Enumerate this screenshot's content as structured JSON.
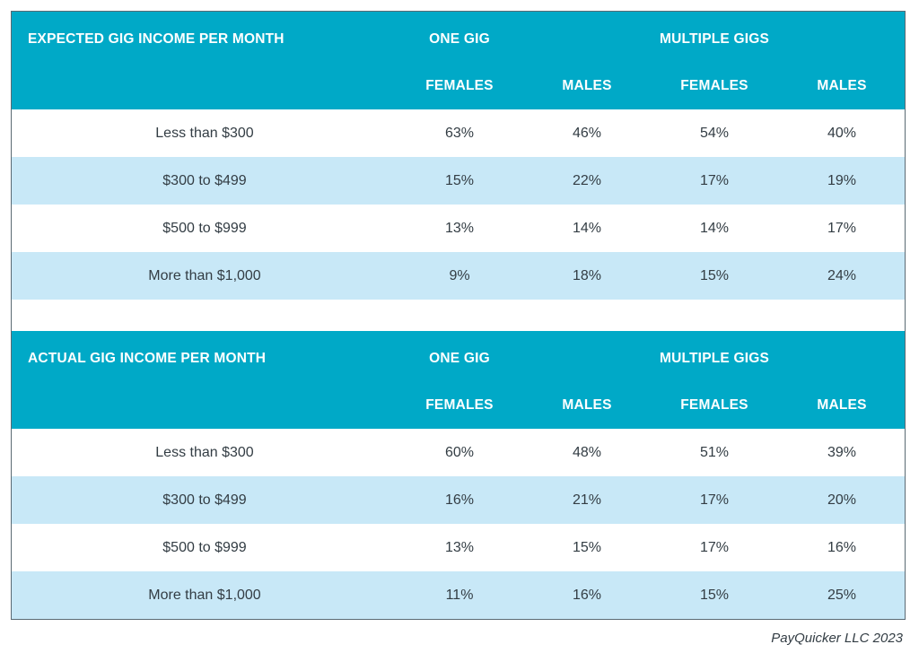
{
  "tables": [
    {
      "title": "EXPECTED GIG INCOME PER MONTH",
      "group_one": "ONE GIG",
      "group_multi": "MULTIPLE GIGS",
      "sub_headers": [
        "FEMALES",
        "MALES",
        "FEMALES",
        "MALES"
      ],
      "rows": [
        {
          "label": "Less than $300",
          "values": [
            "63%",
            "46%",
            "54%",
            "40%"
          ]
        },
        {
          "label": "$300 to $499",
          "values": [
            "15%",
            "22%",
            "17%",
            "19%"
          ]
        },
        {
          "label": "$500 to $999",
          "values": [
            "13%",
            "14%",
            "14%",
            "17%"
          ]
        },
        {
          "label": "More than $1,000",
          "values": [
            "9%",
            "18%",
            "15%",
            "24%"
          ]
        }
      ]
    },
    {
      "title": "ACTUAL GIG INCOME PER MONTH",
      "group_one": "ONE GIG",
      "group_multi": "MULTIPLE GIGS",
      "sub_headers": [
        "FEMALES",
        "MALES",
        "FEMALES",
        "MALES"
      ],
      "rows": [
        {
          "label": "Less than $300",
          "values": [
            "60%",
            "48%",
            "51%",
            "39%"
          ]
        },
        {
          "label": "$300 to $499",
          "values": [
            "16%",
            "21%",
            "17%",
            "20%"
          ]
        },
        {
          "label": "$500 to $999",
          "values": [
            "13%",
            "15%",
            "17%",
            "16%"
          ]
        },
        {
          "label": "More than $1,000",
          "values": [
            "11%",
            "16%",
            "15%",
            "25%"
          ]
        }
      ]
    }
  ],
  "credit": "PayQuicker LLC 2023",
  "colors": {
    "header": "#00a9c7",
    "alt_row": "#c8e8f7",
    "text": "#333d44"
  }
}
